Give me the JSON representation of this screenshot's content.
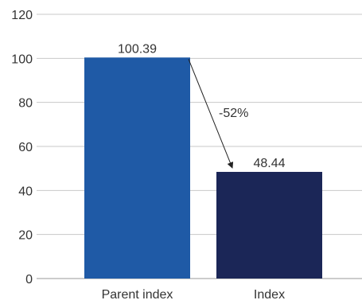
{
  "chart_data": {
    "type": "bar",
    "categories": [
      "Parent index",
      "Index"
    ],
    "values": [
      100.39,
      48.44
    ],
    "data_labels": [
      "100.39",
      "48.44"
    ],
    "colors": [
      "#1f5aa6",
      "#1b2657"
    ],
    "title": "",
    "xlabel": "",
    "ylabel": "",
    "ylim": [
      0,
      120
    ],
    "yticks": [
      0,
      20,
      40,
      60,
      80,
      100,
      120
    ],
    "grid": true,
    "legend": false,
    "annotation": {
      "text": "-52%",
      "from_category": "Parent index",
      "to_category": "Index"
    }
  }
}
